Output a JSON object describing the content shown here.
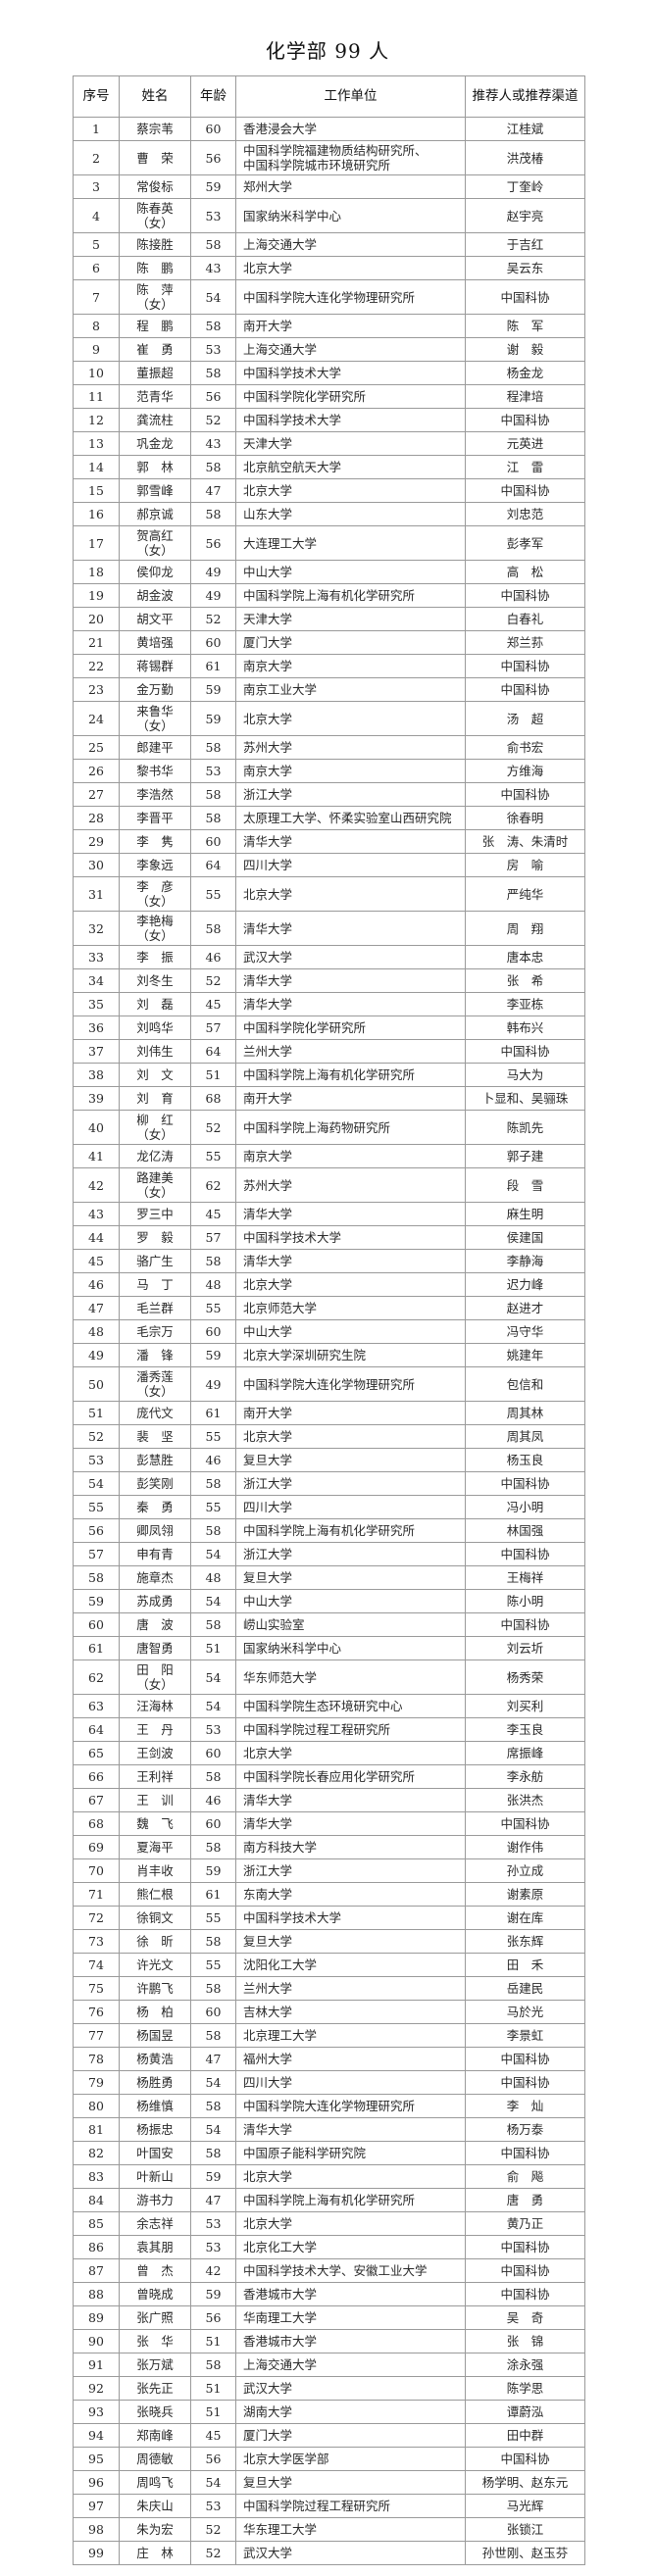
{
  "title": "化学部 99 人",
  "headers": [
    "序号",
    "姓名",
    "年龄",
    "工作单位",
    "推荐人或推荐渠道"
  ],
  "rows": [
    [
      "1",
      "蔡宗苇",
      "60",
      "香港浸会大学",
      "江桂斌"
    ],
    [
      "2",
      "曹　荣",
      "56",
      "中国科学院福建物质结构研究所、\n中国科学院城市环境研究所",
      "洪茂椿"
    ],
    [
      "3",
      "常俊标",
      "59",
      "郑州大学",
      "丁奎岭"
    ],
    [
      "4",
      "陈春英\n（女）",
      "53",
      "国家纳米科学中心",
      "赵宇亮"
    ],
    [
      "5",
      "陈接胜",
      "58",
      "上海交通大学",
      "于吉红"
    ],
    [
      "6",
      "陈　鹏",
      "43",
      "北京大学",
      "吴云东"
    ],
    [
      "7",
      "陈　萍\n（女）",
      "54",
      "中国科学院大连化学物理研究所",
      "中国科协"
    ],
    [
      "8",
      "程　鹏",
      "58",
      "南开大学",
      "陈　军"
    ],
    [
      "9",
      "崔　勇",
      "53",
      "上海交通大学",
      "谢　毅"
    ],
    [
      "10",
      "董振超",
      "58",
      "中国科学技术大学",
      "杨金龙"
    ],
    [
      "11",
      "范青华",
      "56",
      "中国科学院化学研究所",
      "程津培"
    ],
    [
      "12",
      "龚流柱",
      "52",
      "中国科学技术大学",
      "中国科协"
    ],
    [
      "13",
      "巩金龙",
      "43",
      "天津大学",
      "元英进"
    ],
    [
      "14",
      "郭　林",
      "58",
      "北京航空航天大学",
      "江　雷"
    ],
    [
      "15",
      "郭雪峰",
      "47",
      "北京大学",
      "中国科协"
    ],
    [
      "16",
      "郝京诚",
      "58",
      "山东大学",
      "刘忠范"
    ],
    [
      "17",
      "贺高红\n（女）",
      "56",
      "大连理工大学",
      "彭孝军"
    ],
    [
      "18",
      "侯仰龙",
      "49",
      "中山大学",
      "高　松"
    ],
    [
      "19",
      "胡金波",
      "49",
      "中国科学院上海有机化学研究所",
      "中国科协"
    ],
    [
      "20",
      "胡文平",
      "52",
      "天津大学",
      "白春礼"
    ],
    [
      "21",
      "黄培强",
      "60",
      "厦门大学",
      "郑兰荪"
    ],
    [
      "22",
      "蒋锡群",
      "61",
      "南京大学",
      "中国科协"
    ],
    [
      "23",
      "金万勤",
      "59",
      "南京工业大学",
      "中国科协"
    ],
    [
      "24",
      "来鲁华\n（女）",
      "59",
      "北京大学",
      "汤　超"
    ],
    [
      "25",
      "郎建平",
      "58",
      "苏州大学",
      "俞书宏"
    ],
    [
      "26",
      "黎书华",
      "53",
      "南京大学",
      "方维海"
    ],
    [
      "27",
      "李浩然",
      "58",
      "浙江大学",
      "中国科协"
    ],
    [
      "28",
      "李晋平",
      "58",
      "太原理工大学、怀柔实验室山西研究院",
      "徐春明"
    ],
    [
      "29",
      "李　隽",
      "60",
      "清华大学",
      "张　涛、朱清时"
    ],
    [
      "30",
      "李象远",
      "64",
      "四川大学",
      "房　喻"
    ],
    [
      "31",
      "李　彦\n（女）",
      "55",
      "北京大学",
      "严纯华"
    ],
    [
      "32",
      "李艳梅\n（女）",
      "58",
      "清华大学",
      "周　翔"
    ],
    [
      "33",
      "李　振",
      "46",
      "武汉大学",
      "唐本忠"
    ],
    [
      "34",
      "刘冬生",
      "52",
      "清华大学",
      "张　希"
    ],
    [
      "35",
      "刘　磊",
      "45",
      "清华大学",
      "李亚栋"
    ],
    [
      "36",
      "刘鸣华",
      "57",
      "中国科学院化学研究所",
      "韩布兴"
    ],
    [
      "37",
      "刘伟生",
      "64",
      "兰州大学",
      "中国科协"
    ],
    [
      "38",
      "刘　文",
      "51",
      "中国科学院上海有机化学研究所",
      "马大为"
    ],
    [
      "39",
      "刘　育",
      "68",
      "南开大学",
      "卜显和、吴骊珠"
    ],
    [
      "40",
      "柳　红\n（女）",
      "52",
      "中国科学院上海药物研究所",
      "陈凯先"
    ],
    [
      "41",
      "龙亿涛",
      "55",
      "南京大学",
      "郭子建"
    ],
    [
      "42",
      "路建美\n（女）",
      "62",
      "苏州大学",
      "段　雪"
    ],
    [
      "43",
      "罗三中",
      "45",
      "清华大学",
      "麻生明"
    ],
    [
      "44",
      "罗　毅",
      "57",
      "中国科学技术大学",
      "侯建国"
    ],
    [
      "45",
      "骆广生",
      "58",
      "清华大学",
      "李静海"
    ],
    [
      "46",
      "马　丁",
      "48",
      "北京大学",
      "迟力峰"
    ],
    [
      "47",
      "毛兰群",
      "55",
      "北京师范大学",
      "赵进才"
    ],
    [
      "48",
      "毛宗万",
      "60",
      "中山大学",
      "冯守华"
    ],
    [
      "49",
      "潘　锋",
      "59",
      "北京大学深圳研究生院",
      "姚建年"
    ],
    [
      "50",
      "潘秀莲\n（女）",
      "49",
      "中国科学院大连化学物理研究所",
      "包信和"
    ],
    [
      "51",
      "庞代文",
      "61",
      "南开大学",
      "周其林"
    ],
    [
      "52",
      "裴　坚",
      "55",
      "北京大学",
      "周其凤"
    ],
    [
      "53",
      "彭慧胜",
      "46",
      "复旦大学",
      "杨玉良"
    ],
    [
      "54",
      "彭笑刚",
      "58",
      "浙江大学",
      "中国科协"
    ],
    [
      "55",
      "秦　勇",
      "55",
      "四川大学",
      "冯小明"
    ],
    [
      "56",
      "卿凤翎",
      "58",
      "中国科学院上海有机化学研究所",
      "林国强"
    ],
    [
      "57",
      "申有青",
      "54",
      "浙江大学",
      "中国科协"
    ],
    [
      "58",
      "施章杰",
      "48",
      "复旦大学",
      "王梅祥"
    ],
    [
      "59",
      "苏成勇",
      "54",
      "中山大学",
      "陈小明"
    ],
    [
      "60",
      "唐　波",
      "58",
      "崂山实验室",
      "中国科协"
    ],
    [
      "61",
      "唐智勇",
      "51",
      "国家纳米科学中心",
      "刘云圻"
    ],
    [
      "62",
      "田　阳\n（女）",
      "54",
      "华东师范大学",
      "杨秀荣"
    ],
    [
      "63",
      "汪海林",
      "54",
      "中国科学院生态环境研究中心",
      "刘买利"
    ],
    [
      "64",
      "王　丹",
      "53",
      "中国科学院过程工程研究所",
      "李玉良"
    ],
    [
      "65",
      "王剑波",
      "60",
      "北京大学",
      "席振峰"
    ],
    [
      "66",
      "王利祥",
      "58",
      "中国科学院长春应用化学研究所",
      "李永舫"
    ],
    [
      "67",
      "王　训",
      "46",
      "清华大学",
      "张洪杰"
    ],
    [
      "68",
      "魏　飞",
      "60",
      "清华大学",
      "中国科协"
    ],
    [
      "69",
      "夏海平",
      "58",
      "南方科技大学",
      "谢作伟"
    ],
    [
      "70",
      "肖丰收",
      "59",
      "浙江大学",
      "孙立成"
    ],
    [
      "71",
      "熊仁根",
      "61",
      "东南大学",
      "谢素原"
    ],
    [
      "72",
      "徐铜文",
      "55",
      "中国科学技术大学",
      "谢在库"
    ],
    [
      "73",
      "徐　昕",
      "58",
      "复旦大学",
      "张东辉"
    ],
    [
      "74",
      "许光文",
      "55",
      "沈阳化工大学",
      "田　禾"
    ],
    [
      "75",
      "许鹏飞",
      "58",
      "兰州大学",
      "岳建民"
    ],
    [
      "76",
      "杨　柏",
      "60",
      "吉林大学",
      "马於光"
    ],
    [
      "77",
      "杨国昱",
      "58",
      "北京理工大学",
      "李景虹"
    ],
    [
      "78",
      "杨黄浩",
      "47",
      "福州大学",
      "中国科协"
    ],
    [
      "79",
      "杨胜勇",
      "54",
      "四川大学",
      "中国科协"
    ],
    [
      "80",
      "杨维慎",
      "58",
      "中国科学院大连化学物理研究所",
      "李　灿"
    ],
    [
      "81",
      "杨振忠",
      "54",
      "清华大学",
      "杨万泰"
    ],
    [
      "82",
      "叶国安",
      "58",
      "中国原子能科学研究院",
      "中国科协"
    ],
    [
      "83",
      "叶新山",
      "59",
      "北京大学",
      "俞　飚"
    ],
    [
      "84",
      "游书力",
      "47",
      "中国科学院上海有机化学研究所",
      "唐　勇"
    ],
    [
      "85",
      "余志祥",
      "53",
      "北京大学",
      "黄乃正"
    ],
    [
      "86",
      "袁其朋",
      "53",
      "北京化工大学",
      "中国科协"
    ],
    [
      "87",
      "曾　杰",
      "42",
      "中国科学技术大学、安徽工业大学",
      "中国科协"
    ],
    [
      "88",
      "曾晓成",
      "59",
      "香港城市大学",
      "中国科协"
    ],
    [
      "89",
      "张广照",
      "56",
      "华南理工大学",
      "吴　奇"
    ],
    [
      "90",
      "张　华",
      "51",
      "香港城市大学",
      "张　锦"
    ],
    [
      "91",
      "张万斌",
      "58",
      "上海交通大学",
      "涂永强"
    ],
    [
      "92",
      "张先正",
      "51",
      "武汉大学",
      "陈学思"
    ],
    [
      "93",
      "张晓兵",
      "51",
      "湖南大学",
      "谭蔚泓"
    ],
    [
      "94",
      "郑南峰",
      "45",
      "厦门大学",
      "田中群"
    ],
    [
      "95",
      "周德敏",
      "56",
      "北京大学医学部",
      "中国科协"
    ],
    [
      "96",
      "周鸣飞",
      "54",
      "复旦大学",
      "杨学明、赵东元"
    ],
    [
      "97",
      "朱庆山",
      "53",
      "中国科学院过程工程研究所",
      "马光辉"
    ],
    [
      "98",
      "朱为宏",
      "52",
      "华东理工大学",
      "张锁江"
    ],
    [
      "99",
      "庄　林",
      "52",
      "武汉大学",
      "孙世刚、赵玉芬"
    ]
  ]
}
